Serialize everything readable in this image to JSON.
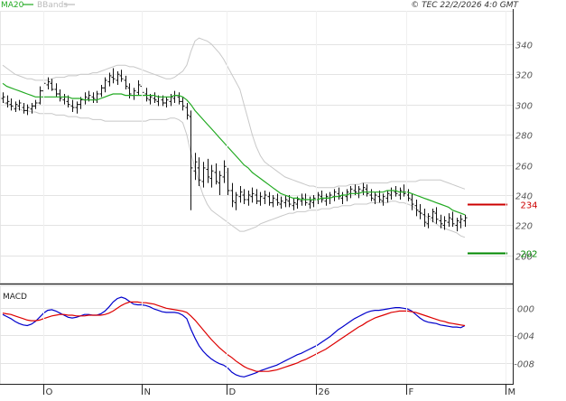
{
  "header": {
    "copyright": "© TEC 22/2/2026 4:0 GMT",
    "legend": [
      {
        "label": "MA20",
        "color": "#22aa22"
      },
      {
        "label": "BBands",
        "color": "#bbbbbb"
      }
    ]
  },
  "chart_data": [
    {
      "type": "line",
      "panel": "price",
      "title": "",
      "x_ticks": [
        "O",
        "N",
        "D",
        "26",
        "F",
        "M"
      ],
      "y_ticks": [
        200,
        220,
        240,
        260,
        280,
        300,
        320,
        340
      ],
      "y_tick_labels": [
        "200",
        "220",
        "240",
        "260",
        "280",
        "300",
        "320",
        "340"
      ],
      "ylim": [
        182,
        362
      ],
      "grid": true,
      "legend_placement": "top-left",
      "price_tags": [
        {
          "label": "234",
          "value": 234,
          "color": "#cc0000"
        },
        {
          "label": "202",
          "value": 202,
          "color": "#008800"
        }
      ],
      "price_bars": [
        [
          304,
          308,
          301,
          305
        ],
        [
          301,
          306,
          298,
          302
        ],
        [
          300,
          304,
          296,
          299
        ],
        [
          297,
          302,
          295,
          300
        ],
        [
          299,
          303,
          296,
          301
        ],
        [
          298,
          301,
          294,
          296
        ],
        [
          296,
          300,
          293,
          298
        ],
        [
          297,
          301,
          294,
          299
        ],
        [
          299,
          303,
          297,
          301
        ],
        [
          301,
          312,
          300,
          309
        ],
        [
          309,
          316,
          306,
          314
        ],
        [
          313,
          318,
          310,
          315
        ],
        [
          314,
          317,
          309,
          310
        ],
        [
          310,
          314,
          305,
          307
        ],
        [
          307,
          310,
          302,
          304
        ],
        [
          303,
          307,
          300,
          305
        ],
        [
          302,
          306,
          298,
          300
        ],
        [
          299,
          303,
          295,
          298
        ],
        [
          298,
          302,
          294,
          300
        ],
        [
          300,
          305,
          297,
          303
        ],
        [
          303,
          308,
          300,
          305
        ],
        [
          304,
          309,
          302,
          306
        ],
        [
          305,
          308,
          301,
          304
        ],
        [
          303,
          309,
          301,
          307
        ],
        [
          307,
          313,
          305,
          311
        ],
        [
          311,
          318,
          308,
          316
        ],
        [
          315,
          321,
          312,
          319
        ],
        [
          318,
          324,
          314,
          317
        ],
        [
          316,
          322,
          313,
          320
        ],
        [
          319,
          323,
          315,
          317
        ],
        [
          316,
          319,
          310,
          312
        ],
        [
          311,
          314,
          304,
          307
        ],
        [
          306,
          311,
          303,
          309
        ],
        [
          308,
          316,
          306,
          313
        ],
        [
          312,
          315,
          306,
          308
        ],
        [
          307,
          311,
          302,
          304
        ],
        [
          303,
          307,
          300,
          305
        ],
        [
          304,
          308,
          301,
          303
        ],
        [
          302,
          306,
          299,
          305
        ],
        [
          303,
          306,
          299,
          301
        ],
        [
          301,
          305,
          298,
          303
        ],
        [
          302,
          307,
          299,
          305
        ],
        [
          304,
          309,
          301,
          306
        ],
        [
          305,
          308,
          300,
          302
        ],
        [
          302,
          305,
          296,
          299
        ],
        [
          298,
          301,
          290,
          293
        ],
        [
          292,
          296,
          230,
          258
        ],
        [
          256,
          268,
          250,
          262
        ],
        [
          258,
          265,
          246,
          250
        ],
        [
          249,
          262,
          245,
          258
        ],
        [
          257,
          264,
          248,
          252
        ],
        [
          251,
          260,
          245,
          256
        ],
        [
          255,
          261,
          247,
          249
        ],
        [
          248,
          256,
          240,
          253
        ],
        [
          252,
          263,
          248,
          259
        ],
        [
          255,
          258,
          240,
          243
        ],
        [
          243,
          248,
          232,
          236
        ],
        [
          235,
          242,
          230,
          240
        ],
        [
          239,
          246,
          235,
          242
        ],
        [
          240,
          244,
          234,
          237
        ],
        [
          237,
          243,
          233,
          240
        ],
        [
          239,
          245,
          235,
          241
        ],
        [
          240,
          244,
          234,
          236
        ],
        [
          236,
          242,
          233,
          239
        ],
        [
          238,
          243,
          234,
          240
        ],
        [
          239,
          242,
          233,
          235
        ],
        [
          235,
          240,
          232,
          238
        ],
        [
          237,
          241,
          233,
          235
        ],
        [
          234,
          239,
          231,
          236
        ],
        [
          235,
          240,
          232,
          237
        ],
        [
          236,
          240,
          232,
          234
        ],
        [
          233,
          238,
          230,
          235
        ],
        [
          234,
          239,
          231,
          237
        ],
        [
          236,
          241,
          233,
          238
        ],
        [
          237,
          241,
          233,
          235
        ],
        [
          234,
          239,
          231,
          236
        ],
        [
          235,
          240,
          232,
          238
        ],
        [
          237,
          242,
          234,
          240
        ],
        [
          239,
          243,
          235,
          237
        ],
        [
          236,
          241,
          233,
          239
        ],
        [
          238,
          242,
          234,
          240
        ],
        [
          239,
          244,
          236,
          242
        ],
        [
          241,
          245,
          237,
          239
        ],
        [
          238,
          242,
          234,
          240
        ],
        [
          239,
          244,
          236,
          242
        ],
        [
          241,
          246,
          238,
          244
        ],
        [
          243,
          247,
          240,
          242
        ],
        [
          241,
          246,
          238,
          244
        ],
        [
          243,
          248,
          240,
          245
        ],
        [
          244,
          247,
          239,
          241
        ],
        [
          240,
          244,
          236,
          238
        ],
        [
          237,
          242,
          234,
          240
        ],
        [
          239,
          243,
          235,
          237
        ],
        [
          236,
          241,
          233,
          239
        ],
        [
          238,
          243,
          235,
          241
        ],
        [
          240,
          245,
          237,
          243
        ],
        [
          242,
          246,
          239,
          241
        ],
        [
          240,
          245,
          237,
          243
        ],
        [
          242,
          247,
          239,
          241
        ],
        [
          240,
          244,
          236,
          238
        ],
        [
          237,
          241,
          230,
          234
        ],
        [
          233,
          237,
          226,
          230
        ],
        [
          229,
          234,
          224,
          228
        ],
        [
          227,
          231,
          219,
          222
        ],
        [
          221,
          228,
          218,
          226
        ],
        [
          225,
          231,
          222,
          229
        ],
        [
          228,
          232,
          221,
          224
        ],
        [
          223,
          227,
          218,
          221
        ],
        [
          220,
          226,
          217,
          223
        ],
        [
          222,
          228,
          219,
          225
        ],
        [
          224,
          229,
          219,
          221
        ],
        [
          220,
          225,
          216,
          223
        ],
        [
          222,
          227,
          218,
          224
        ],
        [
          223,
          227,
          219,
          225
        ]
      ],
      "ma20": [
        314,
        312,
        311,
        310,
        309,
        308,
        307,
        306,
        305,
        305,
        305,
        305,
        305,
        305,
        305,
        305,
        305,
        304,
        304,
        304,
        303,
        303,
        303,
        303,
        304,
        305,
        306,
        307,
        307,
        307,
        306,
        306,
        306,
        306,
        306,
        306,
        306,
        306,
        305,
        305,
        305,
        305,
        306,
        306,
        305,
        303,
        300,
        296,
        293,
        290,
        287,
        284,
        281,
        278,
        275,
        272,
        269,
        266,
        263,
        260,
        258,
        255,
        253,
        251,
        249,
        247,
        245,
        243,
        241,
        240,
        239,
        238,
        238,
        237,
        237,
        237,
        237,
        237,
        238,
        238,
        238,
        239,
        239,
        240,
        240,
        241,
        241,
        241,
        242,
        242,
        242,
        242,
        242,
        242,
        243,
        243,
        243,
        242,
        242,
        242,
        241,
        240,
        239,
        238,
        237,
        236,
        235,
        234,
        233,
        232,
        230,
        229,
        228,
        227
      ],
      "bb_upper": [
        326,
        324,
        322,
        320,
        319,
        318,
        317,
        317,
        316,
        316,
        316,
        316,
        317,
        318,
        318,
        318,
        319,
        319,
        319,
        320,
        320,
        320,
        321,
        321,
        322,
        323,
        324,
        325,
        326,
        326,
        326,
        325,
        325,
        324,
        323,
        322,
        321,
        320,
        319,
        318,
        317,
        317,
        318,
        320,
        322,
        326,
        335,
        342,
        344,
        343,
        342,
        340,
        337,
        334,
        330,
        325,
        320,
        315,
        310,
        300,
        290,
        280,
        272,
        266,
        262,
        260,
        258,
        256,
        254,
        252,
        251,
        250,
        249,
        248,
        247,
        246,
        246,
        245,
        245,
        245,
        245,
        245,
        246,
        246,
        246,
        247,
        247,
        247,
        248,
        248,
        248,
        248,
        248,
        248,
        248,
        249,
        249,
        249,
        249,
        249,
        249,
        249,
        250,
        250,
        250,
        250,
        250,
        250,
        249,
        248,
        247,
        246,
        245,
        244
      ],
      "bb_lower": [
        302,
        300,
        299,
        298,
        297,
        296,
        296,
        295,
        295,
        294,
        294,
        294,
        294,
        293,
        293,
        293,
        292,
        292,
        292,
        291,
        291,
        291,
        290,
        290,
        290,
        289,
        289,
        289,
        289,
        289,
        289,
        289,
        289,
        289,
        289,
        289,
        290,
        290,
        290,
        290,
        290,
        291,
        291,
        290,
        288,
        280,
        268,
        258,
        248,
        240,
        234,
        230,
        228,
        226,
        224,
        222,
        220,
        218,
        216,
        216,
        217,
        218,
        219,
        221,
        222,
        223,
        224,
        225,
        226,
        227,
        228,
        228,
        229,
        229,
        229,
        230,
        230,
        230,
        231,
        231,
        231,
        232,
        232,
        233,
        233,
        233,
        234,
        234,
        234,
        234,
        235,
        235,
        235,
        235,
        235,
        236,
        236,
        235,
        235,
        234,
        233,
        231,
        229,
        227,
        225,
        223,
        221,
        219,
        218,
        217,
        216,
        215,
        213,
        212
      ]
    },
    {
      "type": "line",
      "panel": "macd",
      "title": "MACD",
      "y_ticks": [
        0,
        -0.004,
        -0.008
      ],
      "y_tick_labels": [
        "000",
        "-004",
        "-008"
      ],
      "ylim": [
        -0.011,
        0.0032
      ],
      "legend_placement": "top-left",
      "series": [
        {
          "color": "#0000cc",
          "values": [
            -0.001,
            -0.0013,
            -0.0016,
            -0.002,
            -0.0023,
            -0.0025,
            -0.0026,
            -0.0024,
            -0.002,
            -0.0014,
            -0.0008,
            -0.0004,
            -0.0003,
            -0.0005,
            -0.0008,
            -0.0011,
            -0.0014,
            -0.0015,
            -0.0014,
            -0.0012,
            -0.001,
            -0.001,
            -0.0011,
            -0.0011,
            -0.0009,
            -0.0005,
            0.0001,
            0.0008,
            0.0013,
            0.0015,
            0.0013,
            0.0009,
            0.0005,
            0.0004,
            0.0004,
            0.0003,
            0.0001,
            -0.0002,
            -0.0004,
            -0.0006,
            -0.0007,
            -0.0007,
            -0.0007,
            -0.0008,
            -0.0011,
            -0.0016,
            -0.0031,
            -0.0044,
            -0.0055,
            -0.0063,
            -0.0069,
            -0.0074,
            -0.0078,
            -0.0081,
            -0.0083,
            -0.0087,
            -0.0093,
            -0.0097,
            -0.0099,
            -0.01,
            -0.0098,
            -0.0096,
            -0.0094,
            -0.0091,
            -0.0089,
            -0.0087,
            -0.0085,
            -0.0083,
            -0.008,
            -0.0077,
            -0.0074,
            -0.0071,
            -0.0068,
            -0.0066,
            -0.0063,
            -0.006,
            -0.0057,
            -0.0054,
            -0.005,
            -0.0046,
            -0.0042,
            -0.0037,
            -0.0032,
            -0.0028,
            -0.0024,
            -0.002,
            -0.0016,
            -0.0013,
            -0.001,
            -0.0007,
            -0.0005,
            -0.0004,
            -0.0004,
            -0.0003,
            -0.0002,
            -0.0001,
            0.0,
            0.0,
            -0.0001,
            -0.0002,
            -0.0005,
            -0.001,
            -0.0015,
            -0.0019,
            -0.0021,
            -0.0022,
            -0.0023,
            -0.0025,
            -0.0026,
            -0.0027,
            -0.0028,
            -0.0028,
            -0.0029,
            -0.0026
          ]
        },
        {
          "color": "#dd0000",
          "values": [
            -0.0008,
            -0.0009,
            -0.001,
            -0.0012,
            -0.0014,
            -0.0016,
            -0.0018,
            -0.0019,
            -0.0019,
            -0.0018,
            -0.0016,
            -0.0014,
            -0.0012,
            -0.0011,
            -0.001,
            -0.001,
            -0.0011,
            -0.0011,
            -0.0012,
            -0.0012,
            -0.0012,
            -0.0011,
            -0.0011,
            -0.0011,
            -0.0011,
            -0.001,
            -0.0008,
            -0.0005,
            -0.0001,
            0.0003,
            0.0006,
            0.0008,
            0.0008,
            0.0008,
            0.0007,
            0.0007,
            0.0006,
            0.0005,
            0.0003,
            0.0001,
            -0.0001,
            -0.0002,
            -0.0003,
            -0.0004,
            -0.0005,
            -0.0007,
            -0.0012,
            -0.0018,
            -0.0025,
            -0.0032,
            -0.0039,
            -0.0046,
            -0.0052,
            -0.0058,
            -0.0063,
            -0.0068,
            -0.0072,
            -0.0077,
            -0.0081,
            -0.0085,
            -0.0088,
            -0.009,
            -0.0092,
            -0.0092,
            -0.0092,
            -0.0092,
            -0.0091,
            -0.009,
            -0.0088,
            -0.0086,
            -0.0084,
            -0.0082,
            -0.008,
            -0.0077,
            -0.0075,
            -0.0072,
            -0.0069,
            -0.0066,
            -0.0063,
            -0.006,
            -0.0056,
            -0.0052,
            -0.0048,
            -0.0044,
            -0.004,
            -0.0036,
            -0.0032,
            -0.0028,
            -0.0025,
            -0.0021,
            -0.0018,
            -0.0015,
            -0.0013,
            -0.0011,
            -0.0009,
            -0.0007,
            -0.0006,
            -0.0005,
            -0.0005,
            -0.0005,
            -0.0006,
            -0.0007,
            -0.0009,
            -0.0011,
            -0.0013,
            -0.0015,
            -0.0017,
            -0.0019,
            -0.002,
            -0.0022,
            -0.0023,
            -0.0024,
            -0.0025,
            -0.0026
          ]
        }
      ]
    }
  ]
}
